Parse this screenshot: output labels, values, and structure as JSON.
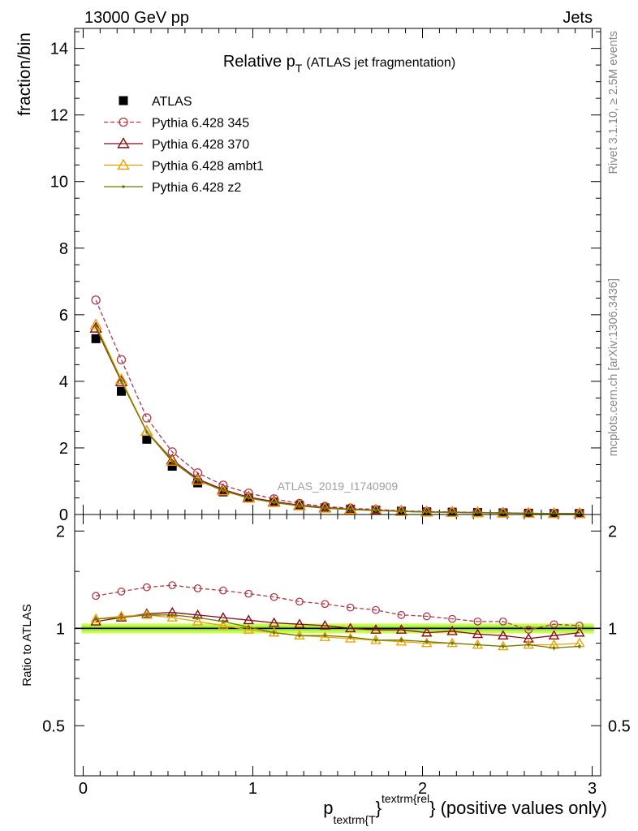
{
  "header": {
    "left": "13000 GeV pp",
    "right": "Jets"
  },
  "side_labels": {
    "rivet": "Rivet 3.1.10, ≥ 2.5M events",
    "mcplots": "mcplots.cern.ch [arXiv:1306.3436]"
  },
  "watermark": "ATLAS_2019_I1740909",
  "chart_data": [
    {
      "type": "scatter",
      "title": {
        "main": "Relative p",
        "sub": "T",
        "suffix": "(ATLAS jet fragmentation)"
      },
      "ylabel": "fraction/bin",
      "ylim": [
        0,
        14.6
      ],
      "yticks": [
        0,
        2,
        4,
        6,
        8,
        10,
        12,
        14
      ],
      "xlim": [
        -0.05,
        3.05
      ],
      "legend_position": "top-left",
      "x": [
        0.075,
        0.225,
        0.375,
        0.525,
        0.675,
        0.825,
        0.975,
        1.125,
        1.275,
        1.425,
        1.575,
        1.725,
        1.875,
        2.025,
        2.175,
        2.325,
        2.475,
        2.625,
        2.775,
        2.925
      ],
      "series": [
        {
          "name": "ATLAS",
          "color": "#000000",
          "marker": "square",
          "line": "none",
          "values": [
            5.28,
            3.7,
            2.26,
            1.45,
            0.95,
            0.68,
            0.49,
            0.37,
            0.27,
            0.2,
            0.16,
            0.13,
            0.1,
            0.08,
            0.07,
            0.06,
            0.05,
            0.04,
            0.03,
            0.03
          ]
        },
        {
          "name": "Pythia 6.428 345",
          "color": "#b03a48",
          "marker": "open-circle",
          "line": "dashed",
          "values": [
            6.44,
            4.65,
            2.9,
            1.88,
            1.25,
            0.88,
            0.64,
            0.47,
            0.33,
            0.24,
            0.19,
            0.15,
            0.11,
            0.09,
            0.075,
            0.064,
            0.053,
            0.04,
            0.031,
            0.03
          ]
        },
        {
          "name": "Pythia 6.428 370",
          "color": "#8b0a16",
          "marker": "open-triangle",
          "line": "solid",
          "values": [
            5.6,
            3.99,
            2.5,
            1.64,
            1.07,
            0.75,
            0.52,
            0.39,
            0.28,
            0.21,
            0.16,
            0.13,
            0.1,
            0.078,
            0.069,
            0.057,
            0.047,
            0.037,
            0.028,
            0.029
          ]
        },
        {
          "name": "Pythia 6.428 ambt1",
          "color": "#f0a000",
          "marker": "open-triangle",
          "line": "solid",
          "values": [
            5.7,
            4.05,
            2.5,
            1.6,
            1.03,
            0.71,
            0.49,
            0.36,
            0.26,
            0.19,
            0.15,
            0.12,
            0.092,
            0.073,
            0.063,
            0.052,
            0.043,
            0.035,
            0.027,
            0.027
          ]
        },
        {
          "name": "Pythia 6.428 z2",
          "color": "#6b7a00",
          "marker": "dot",
          "line": "solid",
          "values": [
            5.65,
            4.0,
            2.48,
            1.59,
            1.03,
            0.72,
            0.5,
            0.36,
            0.26,
            0.19,
            0.15,
            0.12,
            0.092,
            0.073,
            0.063,
            0.053,
            0.044,
            0.036,
            0.026,
            0.026
          ]
        }
      ]
    },
    {
      "type": "line",
      "ylabel": "Ratio to ATLAS",
      "ylim": [
        0.35,
        2.25
      ],
      "yticks": [
        0.5,
        1,
        2
      ],
      "yticklabels": [
        "0.5",
        "1",
        "2"
      ],
      "xlim": [
        -0.05,
        3.05
      ],
      "xticks": [
        0,
        1,
        2,
        3
      ],
      "xticklabels": [
        "0",
        "1",
        "2",
        "3"
      ],
      "xlabel": {
        "p": "p",
        "sub": "textrm{T",
        "brace": "}",
        "sup": "textrm{rel",
        "tail": "} (positive values only)"
      },
      "reference_line": 1,
      "band_color": "#ccff44",
      "band_core_color": "#9ee85a",
      "series": [
        {
          "name": "Pythia 6.428 345",
          "color": "#b03a48",
          "marker": "open-circle",
          "line": "dashed",
          "values": [
            1.26,
            1.3,
            1.34,
            1.36,
            1.33,
            1.31,
            1.28,
            1.25,
            1.21,
            1.19,
            1.16,
            1.14,
            1.1,
            1.09,
            1.07,
            1.05,
            1.05,
            0.99,
            1.03,
            1.02
          ]
        },
        {
          "name": "Pythia 6.428 370",
          "color": "#8b0a16",
          "marker": "open-triangle",
          "line": "solid",
          "values": [
            1.05,
            1.08,
            1.11,
            1.12,
            1.1,
            1.08,
            1.06,
            1.04,
            1.03,
            1.02,
            1.0,
            0.99,
            0.99,
            0.97,
            0.98,
            0.96,
            0.95,
            0.93,
            0.95,
            0.97
          ]
        },
        {
          "name": "Pythia 6.428 ambt1",
          "color": "#f0a000",
          "marker": "open-triangle",
          "line": "solid",
          "values": [
            1.07,
            1.09,
            1.1,
            1.08,
            1.05,
            1.02,
            0.99,
            0.97,
            0.95,
            0.94,
            0.93,
            0.92,
            0.91,
            0.9,
            0.9,
            0.89,
            0.88,
            0.89,
            0.89,
            0.9
          ]
        },
        {
          "name": "Pythia 6.428 z2",
          "color": "#6b7a00",
          "marker": "dot",
          "line": "solid",
          "values": [
            1.07,
            1.08,
            1.1,
            1.1,
            1.08,
            1.05,
            1.01,
            0.97,
            0.95,
            0.95,
            0.94,
            0.92,
            0.92,
            0.91,
            0.9,
            0.89,
            0.88,
            0.89,
            0.87,
            0.88
          ]
        }
      ]
    }
  ]
}
